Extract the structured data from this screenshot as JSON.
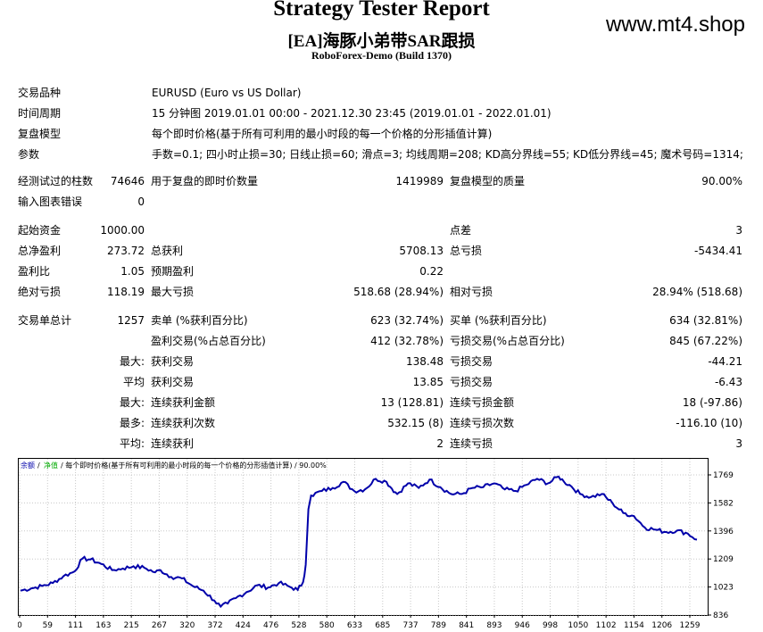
{
  "header": {
    "title": "Strategy Tester Report",
    "subtitle": "[EA]海豚小弟带SAR跟损",
    "build": "RoboForex-Demo (Build 1370)",
    "watermark": "www.mt4.shop"
  },
  "info": [
    {
      "label": "交易品种",
      "value": "EURUSD (Euro vs US Dollar)"
    },
    {
      "label": "时间周期",
      "value": "15 分钟图 2019.01.01 00:00 - 2021.12.30 23:45 (2019.01.01 - 2022.01.01)"
    },
    {
      "label": "复盘模型",
      "value": "每个即时价格(基于所有可利用的最小时段的每一个价格的分形插值计算)"
    },
    {
      "label": "参数",
      "value": "手数=0.1; 四小时止损=30; 日线止损=60; 滑点=3; 均线周期=208; KD高分界线=55; KD低分界线=45; 魔术号码=1314;"
    }
  ],
  "bars": {
    "label": "经测试过的柱数",
    "value": "74646",
    "ticks_label": "用于复盘的即时价数量",
    "ticks_value": "1419989",
    "quality_label": "复盘模型的质量",
    "quality_value": "90.00%"
  },
  "errors": {
    "label": "输入图表错误",
    "value": "0"
  },
  "stats": {
    "initial_deposit_label": "起始资金",
    "initial_deposit": "1000.00",
    "spread_label": "点差",
    "spread": "3",
    "net_profit_label": "总净盈利",
    "net_profit": "273.72",
    "gross_profit_label": "总获利",
    "gross_profit": "5708.13",
    "gross_loss_label": "总亏损",
    "gross_loss": "-5434.41",
    "profit_factor_label": "盈利比",
    "profit_factor": "1.05",
    "expected_payoff_label": "预期盈利",
    "expected_payoff": "0.22",
    "abs_dd_label": "绝对亏损",
    "abs_dd": "118.19",
    "max_dd_label": "最大亏损",
    "max_dd": "518.68 (28.94%)",
    "rel_dd_label": "相对亏损",
    "rel_dd": "28.94% (518.68)"
  },
  "trades": {
    "total_label": "交易单总计",
    "total": "1257",
    "short_label": "卖单 (%获利百分比)",
    "short": "623 (32.74%)",
    "long_label": "买单 (%获利百分比)",
    "long": "634 (32.81%)",
    "profit_trades_label": "盈利交易(%占总百分比)",
    "profit_trades": "412 (32.78%)",
    "loss_trades_label": "亏损交易(%占总百分比)",
    "loss_trades": "845 (67.22%)",
    "rows": [
      {
        "prefix": "最大:",
        "l1": "获利交易",
        "v1": "138.48",
        "l2": "亏损交易",
        "v2": "-44.21"
      },
      {
        "prefix": "平均",
        "l1": "获利交易",
        "v1": "13.85",
        "l2": "亏损交易",
        "v2": "-6.43"
      },
      {
        "prefix": "最大:",
        "l1": "连续获利金额",
        "v1": "13 (128.81)",
        "l2": "连续亏损金额",
        "v2": "18 (-97.86)"
      },
      {
        "prefix": "最多:",
        "l1": "连续获利次数",
        "v1": "532.15 (8)",
        "l2": "连续亏损次数",
        "v2": "-116.10 (10)"
      },
      {
        "prefix": "平均:",
        "l1": "连续获利",
        "v1": "2",
        "l2": "连续亏损",
        "v2": "3"
      }
    ]
  },
  "chart_data": {
    "type": "line",
    "legend": {
      "balance": "余额",
      "equity": "净值",
      "desc": "/ 每个即时价格(基于所有可利用的最小时段的每一个价格的分形插值计算) / 90.00%"
    },
    "colors": {
      "balance": "#0000aa",
      "equity": "#00aa00",
      "grid": "#c8c8c8"
    },
    "x_ticks": [
      "0",
      "59",
      "111",
      "163",
      "215",
      "267",
      "320",
      "372",
      "424",
      "476",
      "528",
      "580",
      "633",
      "685",
      "737",
      "789",
      "841",
      "893",
      "946",
      "998",
      "1050",
      "1102",
      "1154",
      "1206",
      "1259"
    ],
    "y_ticks": [
      "1769",
      "1582",
      "1396",
      "1209",
      "1023",
      "836"
    ],
    "xlim": [
      0,
      1257
    ],
    "ylim": [
      836,
      1769
    ],
    "series": [
      {
        "x": [
          0,
          20,
          40,
          60,
          80,
          100,
          115,
          130,
          150,
          170,
          190,
          210,
          230,
          250,
          260,
          280,
          300,
          320,
          340,
          360,
          372,
          385,
          400,
          420,
          440,
          460,
          480,
          500,
          515,
          525,
          530,
          535,
          540,
          560,
          580,
          600,
          620,
          640,
          660,
          680,
          690,
          700,
          720,
          740,
          760,
          780,
          800,
          820,
          840,
          860,
          880,
          900,
          920,
          940,
          960,
          980,
          1000,
          1010,
          1020,
          1040,
          1060,
          1080,
          1100,
          1120,
          1140,
          1160,
          1180,
          1200,
          1220,
          1240,
          1257
        ],
        "y": [
          985,
          1000,
          1015,
          1035,
          1080,
          1110,
          1195,
          1190,
          1160,
          1120,
          1130,
          1145,
          1135,
          1105,
          1120,
          1075,
          1065,
          1015,
          985,
          920,
          880,
          900,
          935,
          975,
          1020,
          1005,
          1035,
          1010,
          990,
          1040,
          1155,
          1520,
          1610,
          1640,
          1660,
          1700,
          1640,
          1650,
          1720,
          1700,
          1655,
          1620,
          1690,
          1660,
          1715,
          1665,
          1620,
          1620,
          1660,
          1665,
          1690,
          1650,
          1640,
          1680,
          1720,
          1690,
          1735,
          1700,
          1680,
          1620,
          1600,
          1620,
          1560,
          1495,
          1475,
          1400,
          1385,
          1370,
          1380,
          1360,
          1320
        ]
      }
    ]
  }
}
